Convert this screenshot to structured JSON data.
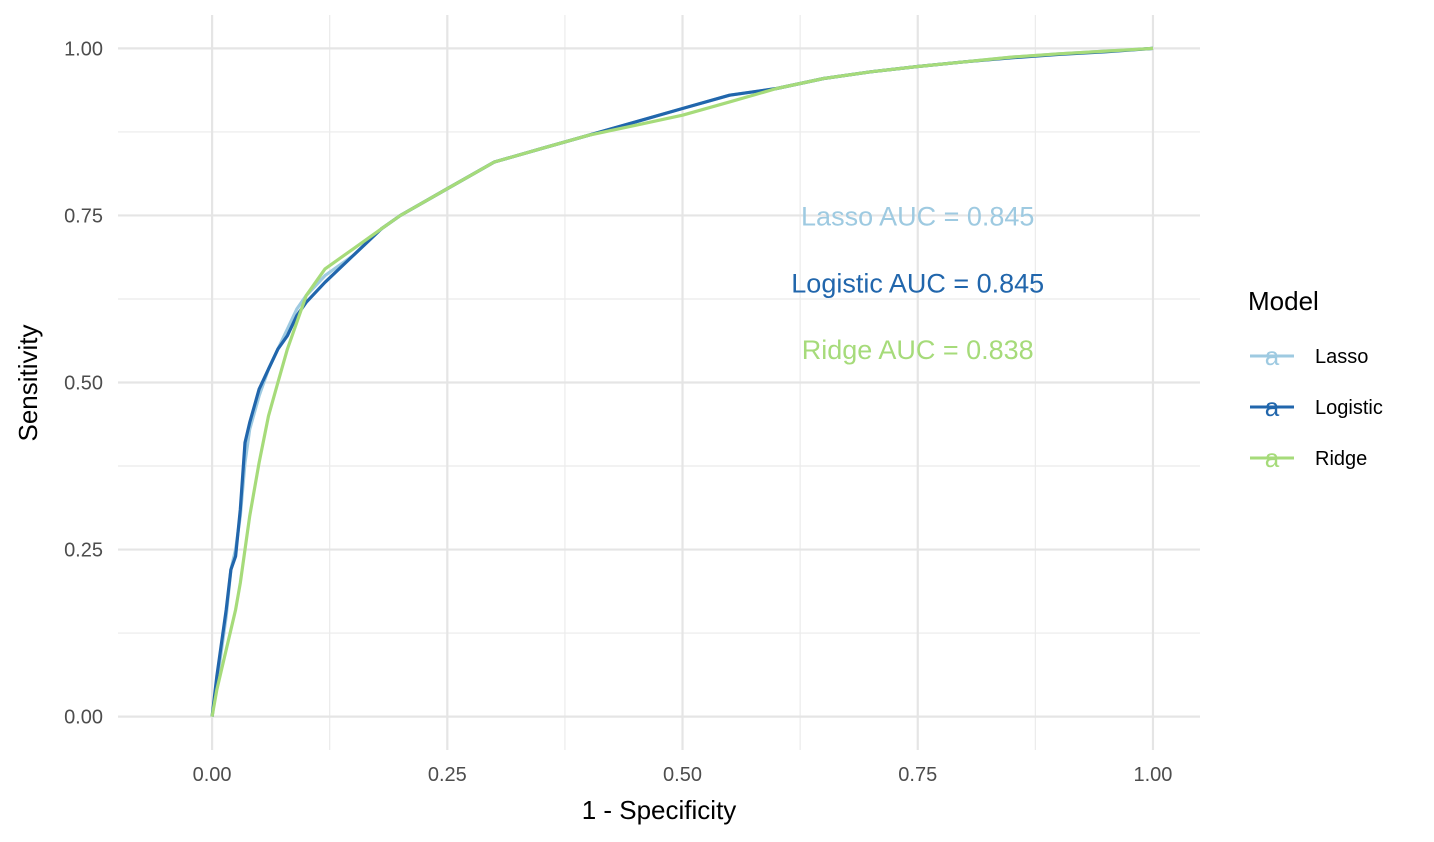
{
  "chart_data": {
    "type": "line",
    "title": "",
    "xlabel": "1 - Specificity",
    "ylabel": "Sensitivity",
    "xlim": [
      -0.1,
      1.05
    ],
    "ylim": [
      -0.05,
      1.05
    ],
    "x_ticks": [
      0,
      0.25,
      0.5,
      0.75,
      1
    ],
    "x_tick_labels": [
      "0.00",
      "0.25",
      "0.50",
      "0.75",
      "1.00"
    ],
    "y_ticks": [
      0,
      0.25,
      0.5,
      0.75,
      1
    ],
    "y_tick_labels": [
      "0.00",
      "0.25",
      "0.50",
      "0.75",
      "1.00"
    ],
    "grid": true,
    "legend": {
      "title": "Model",
      "position": "right",
      "glyph": "a"
    },
    "annotations": [
      {
        "text": "Lasso AUC = 0.845",
        "x": 0.75,
        "y": 0.75,
        "color": "#9ECAE1"
      },
      {
        "text": "Logistic AUC = 0.845",
        "x": 0.75,
        "y": 0.65,
        "color": "#2166AC"
      },
      {
        "text": "Ridge AUC = 0.838",
        "x": 0.75,
        "y": 0.55,
        "color": "#A6DB7A"
      }
    ],
    "series": [
      {
        "name": "Lasso",
        "color": "#9ECAE1",
        "x": [
          0,
          0.005,
          0.01,
          0.015,
          0.02,
          0.025,
          0.03,
          0.035,
          0.04,
          0.05,
          0.06,
          0.07,
          0.08,
          0.09,
          0.1,
          0.12,
          0.15,
          0.18,
          0.2,
          0.25,
          0.3,
          0.35,
          0.4,
          0.45,
          0.5,
          0.55,
          0.6,
          0.65,
          0.7,
          0.75,
          0.8,
          0.85,
          0.9,
          0.95,
          1
        ],
        "y": [
          0,
          0.05,
          0.1,
          0.15,
          0.22,
          0.25,
          0.3,
          0.38,
          0.43,
          0.48,
          0.52,
          0.55,
          0.58,
          0.61,
          0.63,
          0.66,
          0.69,
          0.73,
          0.75,
          0.79,
          0.83,
          0.85,
          0.87,
          0.89,
          0.91,
          0.93,
          0.94,
          0.955,
          0.965,
          0.973,
          0.98,
          0.987,
          0.992,
          0.996,
          1
        ]
      },
      {
        "name": "Logistic",
        "color": "#2166AC",
        "x": [
          0,
          0.005,
          0.01,
          0.015,
          0.02,
          0.025,
          0.03,
          0.035,
          0.04,
          0.05,
          0.06,
          0.07,
          0.08,
          0.09,
          0.1,
          0.12,
          0.15,
          0.18,
          0.2,
          0.25,
          0.3,
          0.35,
          0.4,
          0.45,
          0.5,
          0.55,
          0.6,
          0.65,
          0.7,
          0.75,
          0.8,
          0.85,
          0.9,
          0.95,
          1
        ],
        "y": [
          0,
          0.06,
          0.11,
          0.16,
          0.22,
          0.24,
          0.31,
          0.41,
          0.44,
          0.49,
          0.52,
          0.55,
          0.57,
          0.6,
          0.62,
          0.65,
          0.69,
          0.73,
          0.75,
          0.79,
          0.83,
          0.85,
          0.87,
          0.89,
          0.91,
          0.93,
          0.94,
          0.955,
          0.965,
          0.973,
          0.98,
          0.986,
          0.991,
          0.995,
          1
        ]
      },
      {
        "name": "Ridge",
        "color": "#A6DB7A",
        "x": [
          0,
          0.005,
          0.01,
          0.015,
          0.02,
          0.025,
          0.03,
          0.035,
          0.04,
          0.05,
          0.06,
          0.07,
          0.08,
          0.09,
          0.1,
          0.12,
          0.15,
          0.18,
          0.2,
          0.25,
          0.3,
          0.35,
          0.4,
          0.45,
          0.5,
          0.55,
          0.6,
          0.65,
          0.7,
          0.75,
          0.8,
          0.85,
          0.9,
          0.95,
          1
        ],
        "y": [
          0,
          0.04,
          0.07,
          0.1,
          0.13,
          0.16,
          0.2,
          0.25,
          0.3,
          0.38,
          0.45,
          0.5,
          0.55,
          0.59,
          0.63,
          0.67,
          0.7,
          0.73,
          0.75,
          0.79,
          0.83,
          0.85,
          0.87,
          0.885,
          0.9,
          0.92,
          0.94,
          0.955,
          0.965,
          0.973,
          0.98,
          0.987,
          0.992,
          0.996,
          1
        ]
      }
    ]
  }
}
